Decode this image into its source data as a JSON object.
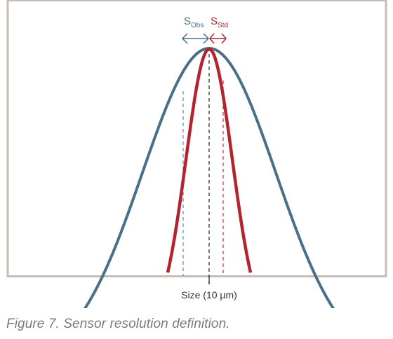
{
  "diagram": {
    "obs_label": {
      "base": "S",
      "sub": "Obs"
    },
    "std_label": {
      "base": "S",
      "sub": "Std"
    },
    "x_axis_label": "Size (10 µm)"
  },
  "caption": "Figure 7. Sensor resolution definition.",
  "colors": {
    "frame": "#c9bcb5",
    "observed_curve": "#4a7087",
    "standard_curve": "#b42330",
    "center_line": "#333333",
    "observed_dashed": "#6f8fa3",
    "standard_dashed": "#c4464f"
  }
}
